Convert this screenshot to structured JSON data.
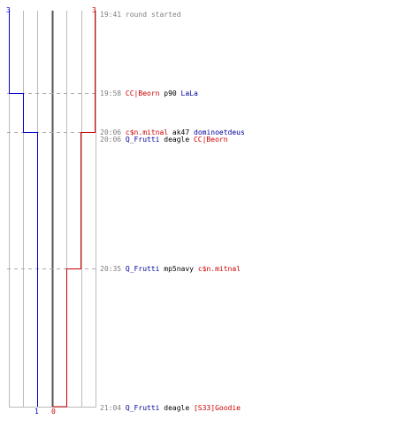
{
  "scores": {
    "blue_start": "3",
    "red_start": "3",
    "blue_end": "1",
    "red_end": "0"
  },
  "colors": {
    "blue": "#0000cc",
    "red": "#cc0000",
    "grid": "#bbbbbb",
    "dash": "#aaaaaa",
    "mid": "#555555",
    "time": "#808080"
  },
  "events": [
    {
      "time": "19:41",
      "parts": [
        {
          "t": "round started",
          "c": "txt-gray"
        }
      ]
    },
    {
      "time": "19:58",
      "parts": [
        {
          "t": "CC|Beorn",
          "c": "red"
        },
        {
          "t": " p90 ",
          "c": "black"
        },
        {
          "t": "LaLa",
          "c": "blue"
        }
      ]
    },
    {
      "time": "20:06",
      "parts": [
        {
          "t": "c$n.mitnal",
          "c": "red"
        },
        {
          "t": " ak47 ",
          "c": "black"
        },
        {
          "t": "dominoetdeus",
          "c": "blue"
        }
      ]
    },
    {
      "time": "20:06",
      "parts": [
        {
          "t": "Q_Frutti",
          "c": "blue"
        },
        {
          "t": " deagle ",
          "c": "black"
        },
        {
          "t": "CC|Beorn",
          "c": "red"
        }
      ]
    },
    {
      "time": "20:35",
      "parts": [
        {
          "t": "Q_Frutti",
          "c": "blue"
        },
        {
          "t": " mp5navy ",
          "c": "black"
        },
        {
          "t": "c$n.mitnal",
          "c": "red"
        }
      ]
    },
    {
      "time": "21:04",
      "parts": [
        {
          "t": "Q_Frutti",
          "c": "blue"
        },
        {
          "t": " deagle ",
          "c": "black"
        },
        {
          "t": "[S33]Goodie",
          "c": "red"
        }
      ]
    }
  ]
}
